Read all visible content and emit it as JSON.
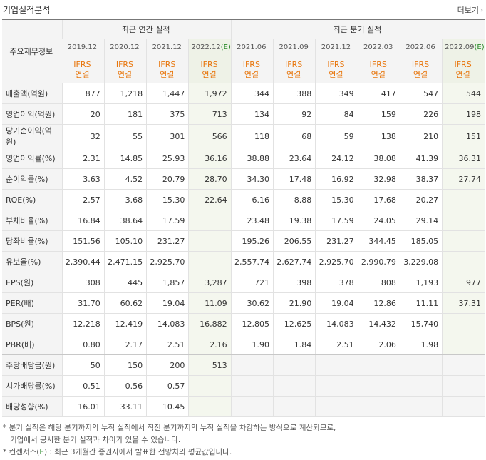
{
  "section_title": "기업실적분석",
  "more_label": "더보기",
  "header": {
    "row_label": "주요재무정보",
    "annual_group": "최근 연간 실적",
    "quarter_group": "최근 분기 실적",
    "periods": [
      {
        "label": "2019.12",
        "est": false,
        "est_mark": ""
      },
      {
        "label": "2020.12",
        "est": false,
        "est_mark": ""
      },
      {
        "label": "2021.12",
        "est": false,
        "est_mark": ""
      },
      {
        "label": "2022.12",
        "est": true,
        "est_mark": "(E)"
      },
      {
        "label": "2021.06",
        "est": false,
        "est_mark": ""
      },
      {
        "label": "2021.09",
        "est": false,
        "est_mark": ""
      },
      {
        "label": "2021.12",
        "est": false,
        "est_mark": ""
      },
      {
        "label": "2022.03",
        "est": false,
        "est_mark": ""
      },
      {
        "label": "2022.06",
        "est": false,
        "est_mark": ""
      },
      {
        "label": "2022.09",
        "est": true,
        "est_mark": "(E)"
      }
    ],
    "standard_line1": "IFRS",
    "standard_line2": "연결"
  },
  "rows": [
    {
      "label": "매출액(억원)",
      "values": [
        "877",
        "1,218",
        "1,447",
        "1,972",
        "344",
        "388",
        "349",
        "417",
        "547",
        "544"
      ]
    },
    {
      "label": "영업이익(억원)",
      "values": [
        "20",
        "181",
        "375",
        "713",
        "134",
        "92",
        "84",
        "159",
        "226",
        "198"
      ]
    },
    {
      "label": "당기순이익(억원)",
      "values": [
        "32",
        "55",
        "301",
        "566",
        "118",
        "68",
        "59",
        "138",
        "210",
        "151"
      ]
    },
    {
      "label": "영업이익률(%)",
      "values": [
        "2.31",
        "14.85",
        "25.93",
        "36.16",
        "38.88",
        "23.64",
        "24.12",
        "38.08",
        "41.39",
        "36.31"
      ]
    },
    {
      "label": "순이익률(%)",
      "values": [
        "3.63",
        "4.52",
        "20.79",
        "28.70",
        "34.30",
        "17.48",
        "16.92",
        "32.98",
        "38.37",
        "27.74"
      ]
    },
    {
      "label": "ROE(%)",
      "values": [
        "2.57",
        "3.68",
        "15.30",
        "22.64",
        "6.16",
        "8.88",
        "15.30",
        "17.68",
        "20.27",
        ""
      ]
    },
    {
      "label": "부채비율(%)",
      "values": [
        "16.84",
        "38.64",
        "17.59",
        "",
        "23.48",
        "19.38",
        "17.59",
        "24.05",
        "29.14",
        ""
      ]
    },
    {
      "label": "당좌비율(%)",
      "values": [
        "151.56",
        "105.10",
        "231.27",
        "",
        "195.26",
        "206.55",
        "231.27",
        "344.45",
        "185.05",
        ""
      ]
    },
    {
      "label": "유보율(%)",
      "values": [
        "2,390.44",
        "2,471.15",
        "2,925.70",
        "",
        "2,557.74",
        "2,627.74",
        "2,925.70",
        "2,990.79",
        "3,229.08",
        ""
      ]
    },
    {
      "label": "EPS(원)",
      "values": [
        "308",
        "445",
        "1,857",
        "3,287",
        "721",
        "398",
        "378",
        "808",
        "1,193",
        "977"
      ]
    },
    {
      "label": "PER(배)",
      "values": [
        "31.70",
        "60.62",
        "19.04",
        "11.09",
        "30.62",
        "21.90",
        "19.04",
        "12.86",
        "11.11",
        "37.31"
      ]
    },
    {
      "label": "BPS(원)",
      "values": [
        "12,218",
        "12,419",
        "14,083",
        "16,882",
        "12,805",
        "12,625",
        "14,083",
        "14,432",
        "15,740",
        ""
      ]
    },
    {
      "label": "PBR(배)",
      "values": [
        "0.80",
        "2.17",
        "2.51",
        "2.16",
        "1.90",
        "1.84",
        "2.51",
        "2.06",
        "1.98",
        ""
      ]
    },
    {
      "label": "주당배당금(원)",
      "values": [
        "50",
        "150",
        "200",
        "513",
        "",
        "",
        "",
        "",
        "",
        ""
      ]
    },
    {
      "label": "시가배당률(%)",
      "values": [
        "0.51",
        "0.56",
        "0.57",
        "",
        "",
        "",
        "",
        "",
        "",
        ""
      ]
    },
    {
      "label": "배당성향(%)",
      "values": [
        "16.01",
        "33.11",
        "10.45",
        "",
        "",
        "",
        "",
        "",
        "",
        ""
      ]
    }
  ],
  "notes": {
    "line1": "* 분기 실적은 해당 분기까지의 누적 실적에서 직전 분기까지의 누적 실적을 차감하는 방식으로 계산되므로,",
    "line2": "기업에서 공시한 분기 실적과 차이가 있을 수 있습니다.",
    "line3_pre": "* 컨센서스(",
    "line3_mark": "E",
    "line3_post": ") : 최근 3개월간 증권사에서 발표한 전망치의 평균값입니다."
  },
  "colors": {
    "ifrs": "#e8760c",
    "estimate": "#2a8a2a",
    "header_bg": "#f4f4f4"
  }
}
